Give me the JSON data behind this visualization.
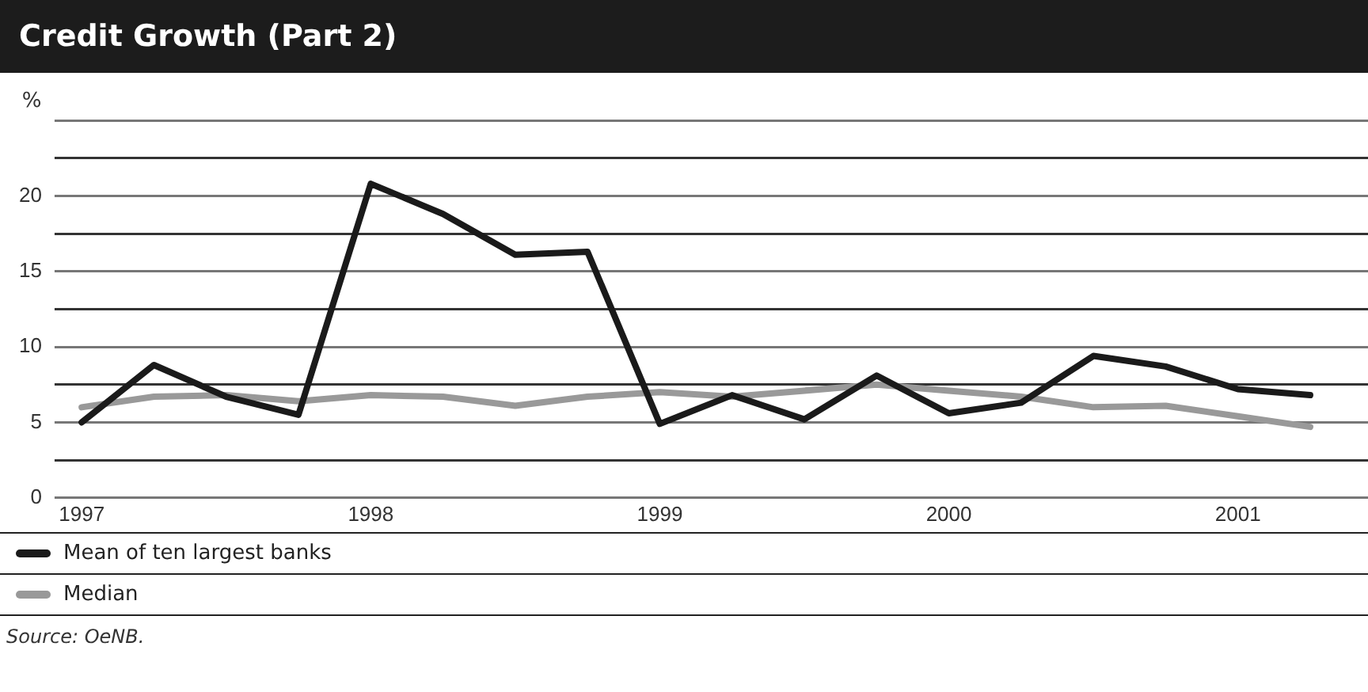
{
  "chart_data": {
    "type": "line",
    "title": "Credit Growth (Part 2)",
    "ylabel": "%",
    "x": [
      1997,
      1997.25,
      1997.5,
      1997.75,
      1998,
      1998.25,
      1998.5,
      1998.75,
      1999,
      1999.25,
      1999.5,
      1999.75,
      2000,
      2000.25,
      2000.5,
      2000.75,
      2001,
      2001.25
    ],
    "series": [
      {
        "name": "Mean of ten largest banks",
        "color": "#1a1a1a",
        "values": [
          5.0,
          8.8,
          6.7,
          5.5,
          20.8,
          18.8,
          16.1,
          16.3,
          4.9,
          6.8,
          5.2,
          8.1,
          5.6,
          6.3,
          9.4,
          8.7,
          7.2,
          6.8
        ]
      },
      {
        "name": "Median",
        "color": "#999999",
        "values": [
          6.0,
          6.7,
          6.8,
          6.4,
          6.8,
          6.7,
          6.1,
          6.7,
          7.0,
          6.7,
          7.1,
          7.5,
          7.1,
          6.7,
          6.0,
          6.1,
          5.4,
          4.7
        ]
      }
    ],
    "xlim": [
      1996.95,
      2001.45
    ],
    "xticks": [
      1997,
      1998,
      1999,
      2000,
      2001
    ],
    "ylim": [
      0,
      25
    ],
    "yticks": [
      0,
      {
        "value": 2.5,
        "label": null
      },
      5,
      {
        "value": 7.5,
        "label": null
      },
      10,
      {
        "value": 12.5,
        "label": null
      },
      15,
      {
        "value": 17.5,
        "label": null
      },
      20,
      {
        "value": 22.5,
        "label": null
      },
      {
        "value": 25,
        "label": null
      }
    ],
    "grid": "y",
    "legend": "bottom",
    "marker": "none",
    "line_style": "solid",
    "annotations": [
      "Source: OeNB."
    ]
  }
}
